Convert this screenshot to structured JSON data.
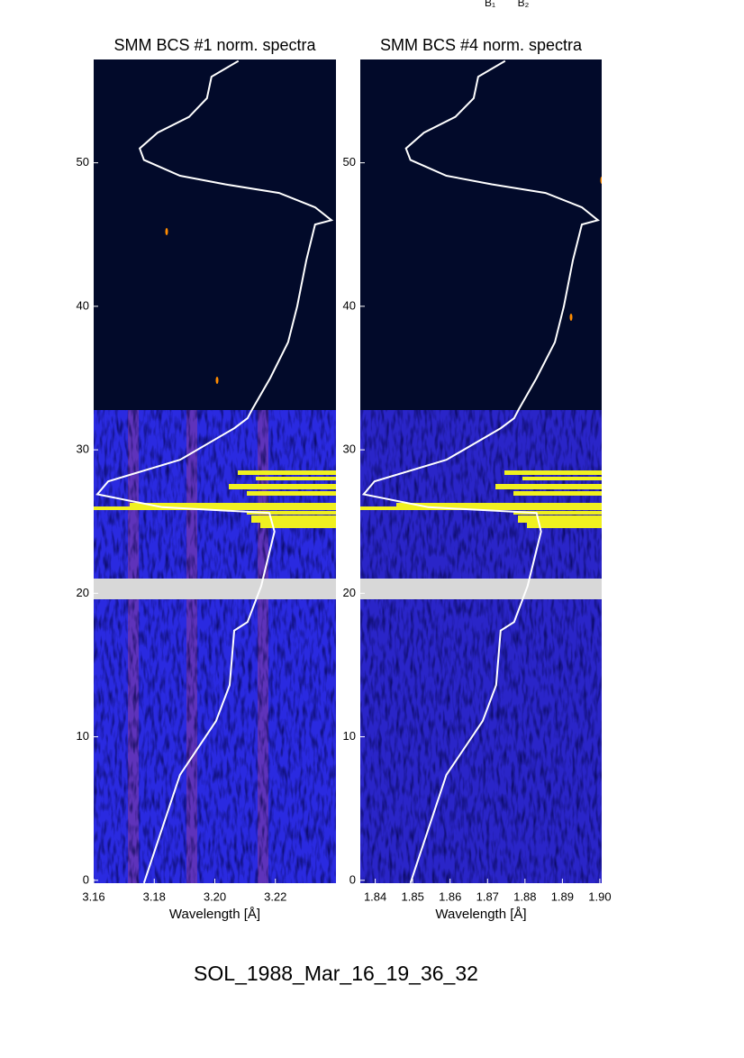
{
  "header": [
    "B₁",
    "B₂"
  ],
  "footer": "SOL_1988_Mar_16_19_36_32",
  "chart_data": [
    {
      "type": "line",
      "title": "SMM BCS #1 norm. spectra",
      "xlabel": "Wavelength [Å]",
      "xlim": [
        3.16,
        3.24
      ],
      "ylim": [
        -0.2,
        57.2
      ],
      "xticks": [
        3.16,
        3.18,
        {
          "value": 3.2,
          "label": "3.20"
        },
        3.22
      ],
      "yticks": [
        0,
        10,
        20,
        30,
        40,
        50
      ],
      "series": [
        {
          "color": "#ffffff",
          "x": [
            3.1766,
            3.1885,
            3.2004,
            3.2049,
            3.2064,
            3.2108,
            3.2153,
            3.2197,
            3.218,
            3.1826,
            3.1612,
            3.1648,
            3.1885,
            3.2064,
            3.2108,
            3.2123,
            3.2183,
            3.2242,
            3.2272,
            3.2302,
            3.2331,
            3.2385,
            3.2331,
            3.2212,
            3.2034,
            3.1885,
            3.1766,
            3.1752,
            3.1811,
            3.1915,
            3.1974,
            3.1989,
            3.2078
          ],
          "values": [
            -0.19,
            7.35,
            11.1,
            13.6,
            17.4,
            18.0,
            20.5,
            24.3,
            25.6,
            26.0,
            26.9,
            27.8,
            29.3,
            31.5,
            32.2,
            32.8,
            35.0,
            37.5,
            40.0,
            43.2,
            45.7,
            46.0,
            46.9,
            47.9,
            48.5,
            49.1,
            50.2,
            51.0,
            52.1,
            53.2,
            54.5,
            56.0,
            57.1
          ]
        }
      ]
    },
    {
      "type": "line",
      "title": "SMM BCS #4 norm. spectra",
      "xlabel": "Wavelength [Å]",
      "xlim": [
        1.836,
        1.9005
      ],
      "ylim": [
        -0.2,
        57.2
      ],
      "xticks": [
        1.84,
        1.85,
        1.86,
        1.87,
        1.88,
        1.89,
        {
          "value": 1.9,
          "label": "1.90"
        }
      ],
      "yticks": [
        0,
        10,
        20,
        30,
        40,
        50
      ],
      "series": [
        {
          "color": "#ffffff",
          "x": [
            1.8494,
            1.859,
            1.8687,
            1.8723,
            1.8735,
            1.8771,
            1.8807,
            1.8843,
            1.8831,
            1.8542,
            1.8369,
            1.8398,
            1.859,
            1.8735,
            1.8771,
            1.8783,
            1.8831,
            1.888,
            1.8904,
            1.8928,
            1.8952,
            1.8995,
            1.8952,
            1.8855,
            1.8711,
            1.859,
            1.8494,
            1.8482,
            1.853,
            1.8614,
            1.8663,
            1.8675,
            1.8747
          ],
          "values": [
            -0.19,
            7.35,
            11.1,
            13.6,
            17.4,
            18.0,
            20.5,
            24.3,
            25.6,
            26.0,
            26.9,
            27.8,
            29.3,
            31.5,
            32.2,
            32.8,
            35.0,
            37.5,
            40.0,
            43.2,
            45.7,
            46.0,
            46.9,
            47.9,
            48.5,
            49.1,
            50.2,
            51.0,
            52.1,
            53.2,
            54.5,
            56.0,
            57.1
          ]
        }
      ]
    }
  ]
}
